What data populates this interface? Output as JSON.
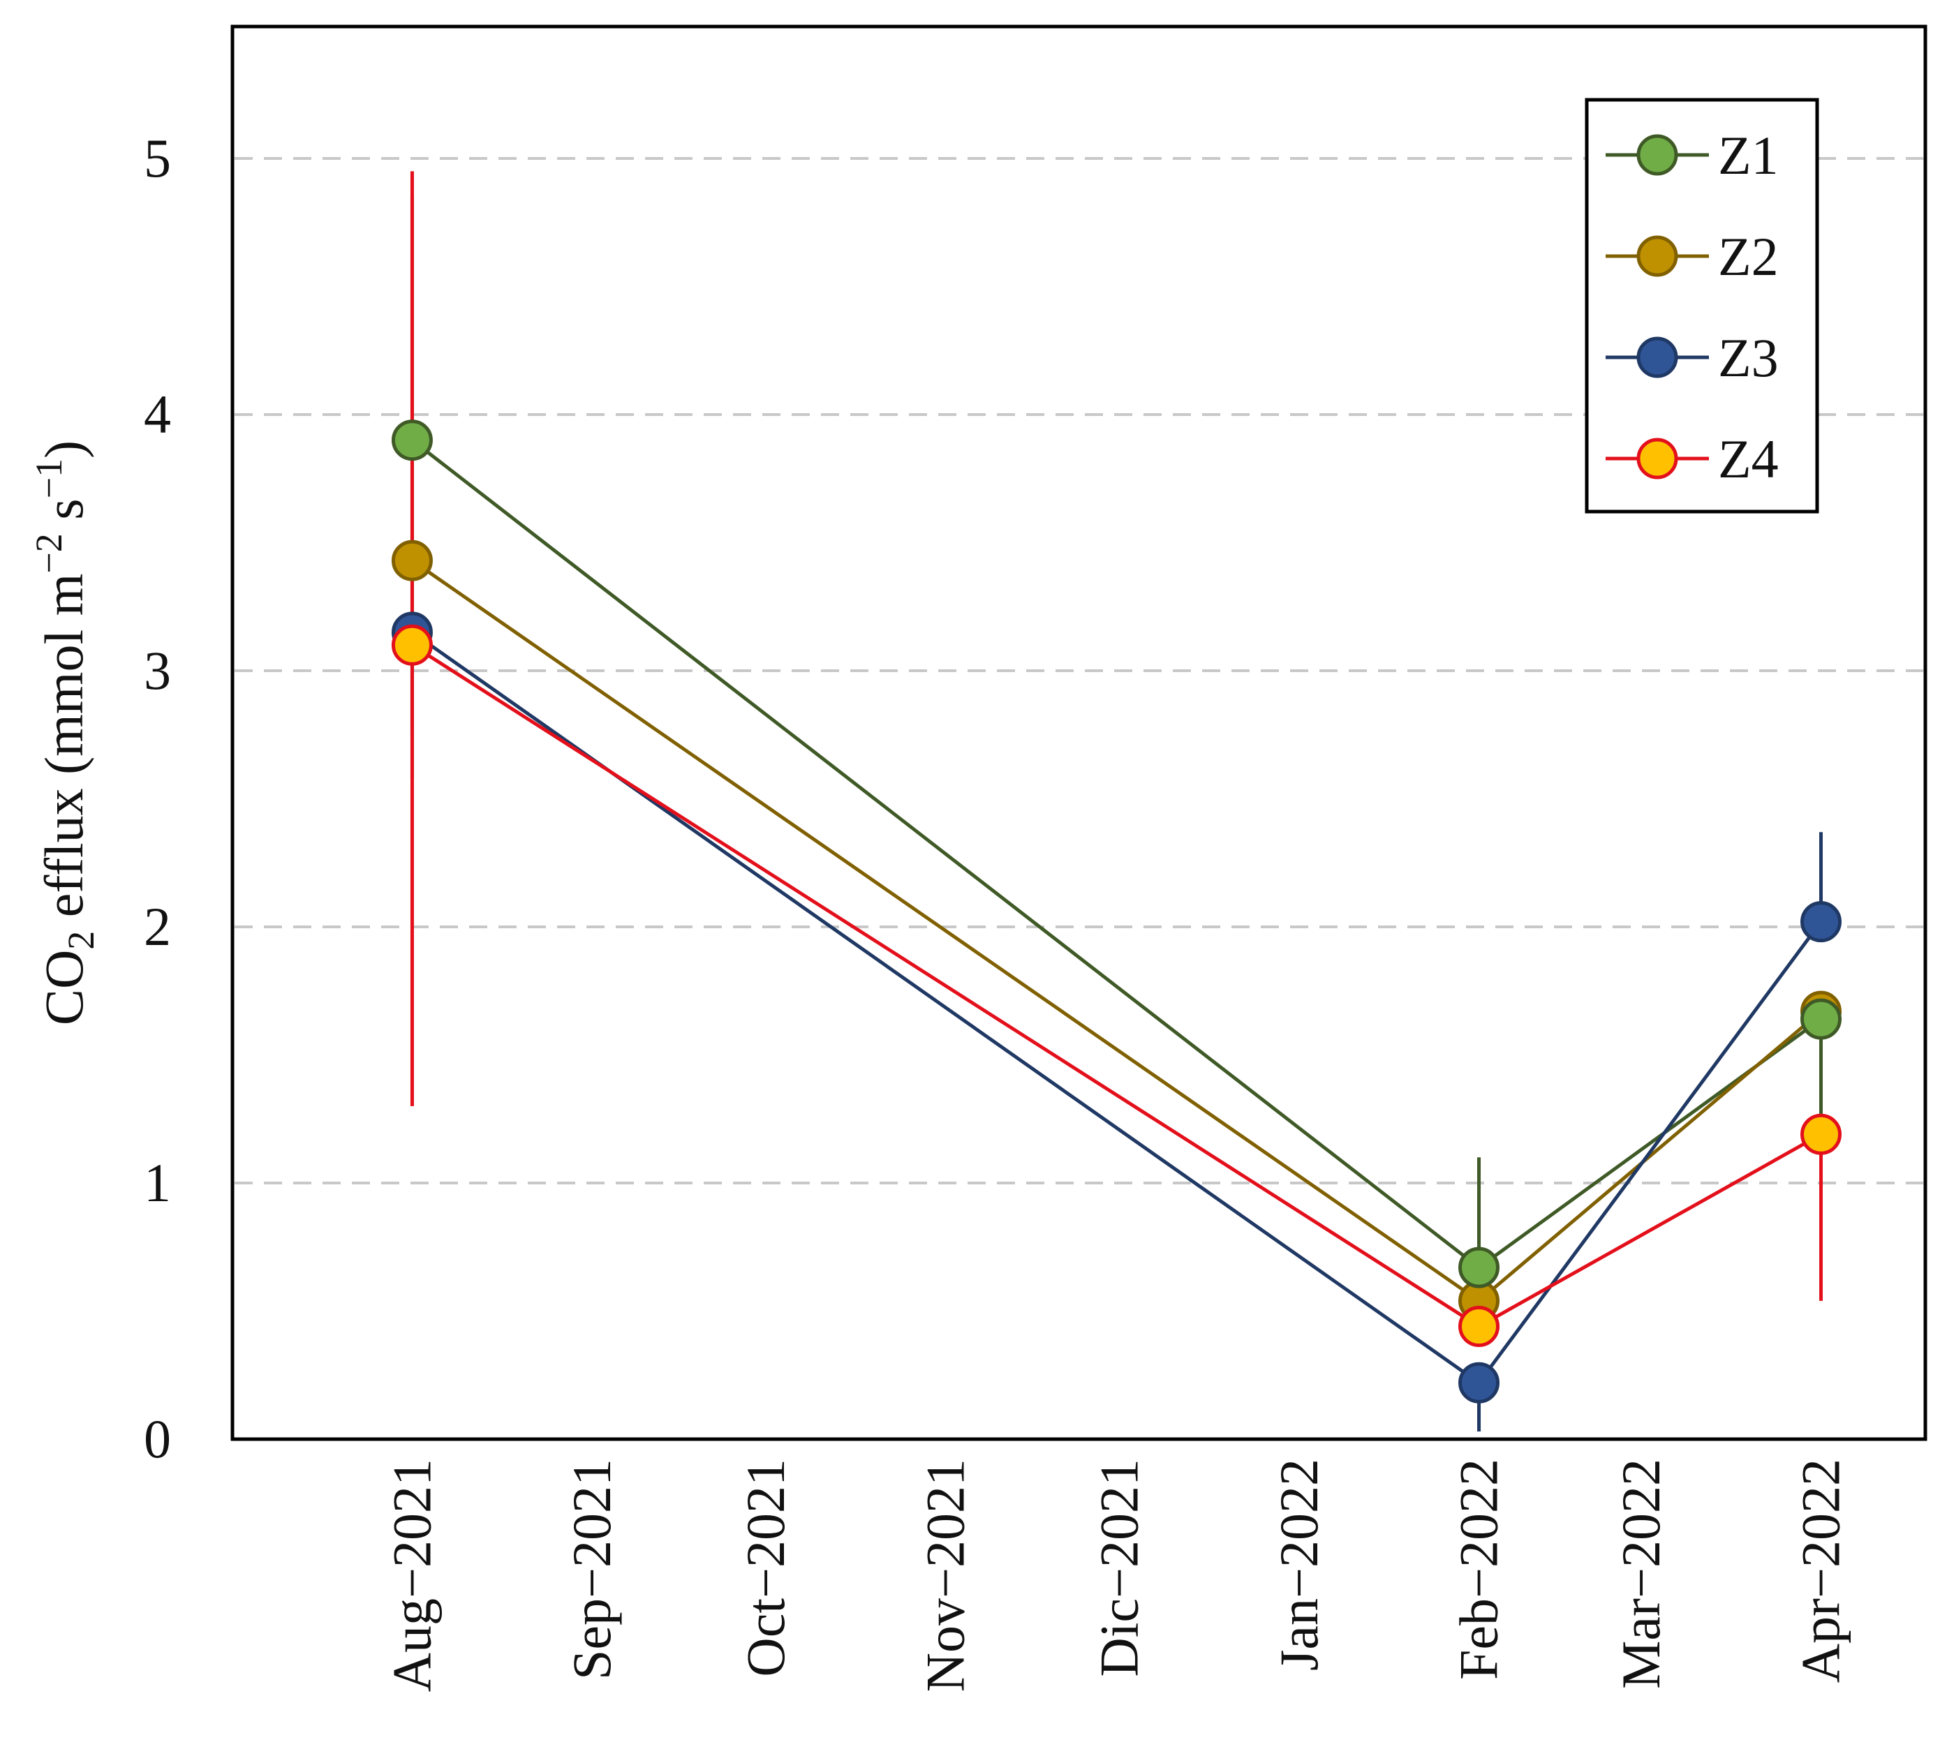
{
  "chart_data": {
    "type": "line",
    "title": "",
    "ylabel": {
      "prefix": "CO",
      "sub": "2",
      "middle": " efflux (mmol m",
      "sup1": "−2",
      "middle2": " s",
      "sup2": "−1",
      "suffix": ")"
    },
    "xlabel": "",
    "x_tick_labels": [
      "Aug−2021",
      "Sep−2021",
      "Oct−2021",
      "Nov−2021",
      "Dic−2021",
      "Jan−2022",
      "Feb−2022",
      "Mar−2022",
      "Apr−2022"
    ],
    "x_tick_dates": [
      "2021-08-12",
      "2021-09-12",
      "2021-10-12",
      "2021-11-12",
      "2021-12-12",
      "2022-01-12",
      "2022-02-12",
      "2022-03-12",
      "2022-04-12"
    ],
    "x_range": [
      "2021-07-12",
      "2022-04-30"
    ],
    "ylim": [
      0,
      5.5
    ],
    "y_ticks": [
      0,
      1,
      2,
      3,
      4,
      5
    ],
    "grid": "horizontal dashed",
    "legend_position": "top-right",
    "series": [
      {
        "name": "Z1",
        "line_color": "#3f5a26",
        "marker_fill": "#70ad47",
        "marker_edge": "#3f5a26",
        "x": [
          "2021-08-12",
          "2022-02-12",
          "2022-04-12"
        ],
        "y": [
          3.9,
          0.67,
          1.64
        ],
        "err_lo": [
          2.58,
          0.67,
          1.26
        ],
        "err_hi": [
          4.85,
          1.1,
          1.64
        ]
      },
      {
        "name": "Z2",
        "line_color": "#806000",
        "marker_fill": "#bf9000",
        "marker_edge": "#806000",
        "x": [
          "2021-08-12",
          "2022-02-12",
          "2022-04-12"
        ],
        "y": [
          3.43,
          0.54,
          1.67
        ],
        "err_lo": [
          3.43,
          0.54,
          1.67
        ],
        "err_hi": [
          3.43,
          0.54,
          1.67
        ]
      },
      {
        "name": "Z3",
        "line_color": "#1f3864",
        "marker_fill": "#2f5597",
        "marker_edge": "#1f3864",
        "x": [
          "2021-08-12",
          "2022-02-12",
          "2022-04-12"
        ],
        "y": [
          3.15,
          0.22,
          2.02
        ],
        "err_lo": [
          2.75,
          0.03,
          2.02
        ],
        "err_hi": [
          3.15,
          0.22,
          2.37
        ]
      },
      {
        "name": "Z4",
        "line_color": "#e3101b",
        "marker_fill": "#ffc000",
        "marker_edge": "#e3101b",
        "x": [
          "2021-08-12",
          "2022-02-12",
          "2022-04-12"
        ],
        "y": [
          3.1,
          0.44,
          1.19
        ],
        "err_lo": [
          1.3,
          0.44,
          0.54
        ],
        "err_hi": [
          4.95,
          0.44,
          1.19
        ]
      }
    ]
  }
}
